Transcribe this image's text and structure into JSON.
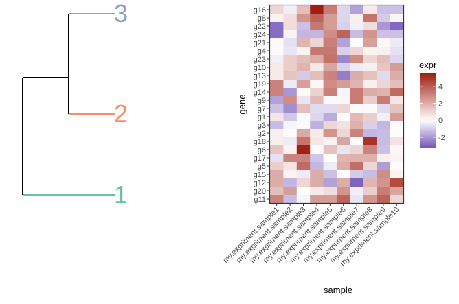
{
  "chart_data": [
    {
      "type": "dendrogram",
      "title": "",
      "leaves": [
        {
          "label": "3",
          "color": "#8DA0CB"
        },
        {
          "label": "2",
          "color": "#FC8D62"
        },
        {
          "label": "1",
          "color": "#66C2A5"
        }
      ],
      "merges": [
        {
          "children": [
            "3",
            "2"
          ],
          "height": 0.6
        },
        {
          "children": [
            "3-2",
            "1"
          ],
          "height": 1.0
        }
      ],
      "branch_color": "#000000"
    },
    {
      "type": "heatmap",
      "title": "",
      "xlabel": "sample",
      "ylabel": "gene",
      "x": [
        "my.expriment.sample1",
        "my.expriment.sample2",
        "my.expriment.sample3",
        "my.expriment.sample4",
        "my.expriment.sample5",
        "my.expriment.sample6",
        "my.expriment.sample7",
        "my.expriment.sample8",
        "my.expriment.sample9",
        "my.expriment.sample10"
      ],
      "y": [
        "g16",
        "g8",
        "g22",
        "g24",
        "g21",
        "g4",
        "g23",
        "g10",
        "g13",
        "g19",
        "g14",
        "g9",
        "g7",
        "g1",
        "g3",
        "g2",
        "g18",
        "g6",
        "g17",
        "g5",
        "g15",
        "g12",
        "g20",
        "g11"
      ],
      "values": [
        [
          1.0,
          -0.3,
          1.6,
          5.5,
          3.2,
          -0.8,
          -1.8,
          0.5,
          -1.2,
          -1.2
        ],
        [
          0.3,
          0.8,
          2.6,
          3.8,
          2.4,
          -0.8,
          0.4,
          3.4,
          -1.0,
          0.2
        ],
        [
          -2.8,
          0.8,
          -1.2,
          3.3,
          2.4,
          -0.9,
          -0.3,
          0.8,
          -2.0,
          -2.9
        ],
        [
          -2.8,
          0.3,
          -1.4,
          -1.4,
          2.8,
          3.8,
          -1.3,
          2.6,
          -1.2,
          -1.2
        ],
        [
          -0.1,
          -0.6,
          1.8,
          1.0,
          3.1,
          -1.8,
          0.1,
          2.3,
          0.2,
          -0.4
        ],
        [
          -0.1,
          -0.5,
          0.3,
          3.3,
          3.3,
          -0.9,
          1.0,
          0.3,
          0.4,
          -0.6
        ],
        [
          -0.3,
          1.2,
          1.6,
          2.0,
          3.4,
          -2.3,
          2.8,
          1.0,
          1.6,
          -0.8
        ],
        [
          0.5,
          1.2,
          1.8,
          0.5,
          2.2,
          -0.9,
          -0.4,
          0.4,
          1.4,
          2.4
        ],
        [
          0.5,
          1.4,
          -1.0,
          1.6,
          3.0,
          -2.5,
          2.0,
          1.5,
          -0.7,
          2.0
        ],
        [
          3.0,
          -0.4,
          2.3,
          0.2,
          2.8,
          2.4,
          1.8,
          0.4,
          1.0,
          1.6
        ],
        [
          3.0,
          -2.0,
          0.1,
          1.1,
          3.1,
          -0.2,
          3.2,
          2.0,
          1.8,
          3.6
        ],
        [
          -1.8,
          2.8,
          -0.5,
          1.7,
          -0.1,
          0.2,
          3.2,
          1.2,
          3.2,
          0.6
        ],
        [
          -1.2,
          -2.2,
          1.6,
          -0.7,
          -0.7,
          1.0,
          0.1,
          -0.1,
          -0.7,
          1.5
        ],
        [
          0.6,
          -1.1,
          -0.1,
          -0.8,
          -1.6,
          0.1,
          1.7,
          1.2,
          -0.3,
          2.4
        ],
        [
          -1.3,
          -0.2,
          -0.1,
          -1.5,
          1.0,
          0.7,
          1.9,
          -0.9,
          -1.4,
          0.1
        ],
        [
          0.4,
          0.1,
          2.1,
          0.5,
          2.6,
          1.0,
          3.0,
          -1.4,
          -1.3,
          0.1
        ],
        [
          0.4,
          -0.4,
          3.4,
          0.6,
          0.3,
          2.2,
          0.0,
          5.0,
          -1.3,
          0.7
        ],
        [
          1.4,
          0.3,
          5.4,
          0.1,
          1.5,
          -0.5,
          1.0,
          3.0,
          -1.2,
          0.2
        ],
        [
          -0.6,
          3.0,
          3.0,
          -1.1,
          0.0,
          1.8,
          1.9,
          1.9,
          0.4,
          0.3
        ],
        [
          1.2,
          0.6,
          3.6,
          -1.4,
          -0.4,
          2.0,
          3.5,
          1.0,
          -1.9,
          0.1
        ],
        [
          2.0,
          0.3,
          -0.4,
          2.0,
          -1.2,
          0.1,
          -1.0,
          -1.3,
          2.8,
          0.3
        ],
        [
          2.0,
          -1.4,
          1.0,
          2.0,
          -1.8,
          2.0,
          -3.0,
          1.8,
          2.6,
          4.4
        ],
        [
          1.6,
          2.4,
          0.0,
          0.5,
          0.8,
          2.6,
          -0.3,
          1.2,
          3.2,
          2.2
        ],
        [
          3.0,
          -1.3,
          -0.2,
          2.4,
          2.4,
          3.8,
          -0.5,
          2.6,
          3.8,
          1.0
        ]
      ],
      "color_scale": {
        "title": "expr",
        "low": "#7254B8",
        "mid": "#FFFFFF",
        "high": "#9E1A0C",
        "limits": [
          -3.3,
          5.6
        ],
        "ticks": [
          -2,
          0,
          2,
          4
        ]
      },
      "legend": "right"
    }
  ]
}
